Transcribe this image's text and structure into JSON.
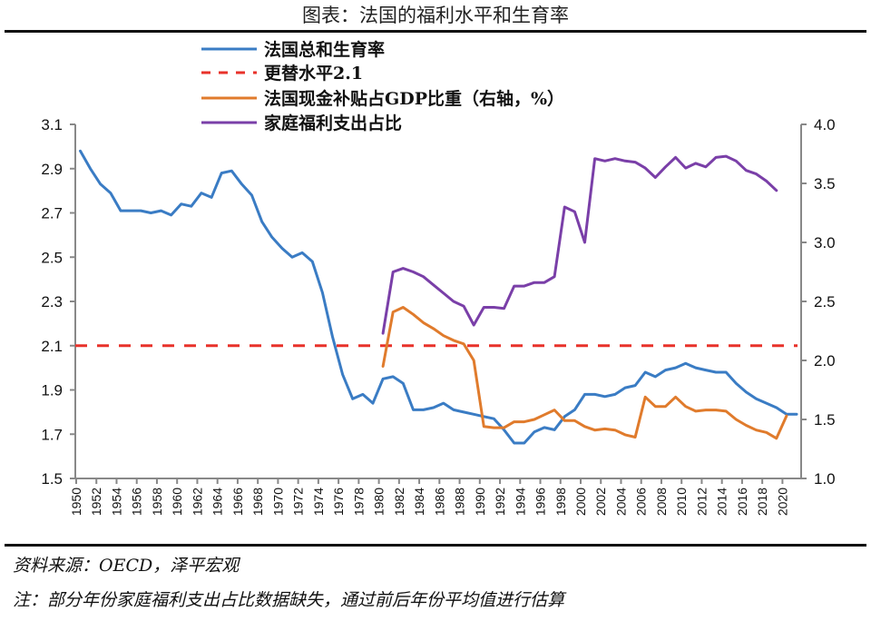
{
  "title": "图表：法国的福利水平和生育率",
  "footer": {
    "source": "资料来源：OECD，泽平宏观",
    "note": "注：部分年份家庭福利支出占比数据缺失，通过前后年份平均值进行估算"
  },
  "chart_data": {
    "type": "line",
    "title": "图表：法国的福利水平和生育率",
    "legend_position": "top",
    "grid": false,
    "x_ticks": [
      "1950",
      "1952",
      "1954",
      "1956",
      "1958",
      "1960",
      "1962",
      "1964",
      "1966",
      "1968",
      "1970",
      "1972",
      "1974",
      "1976",
      "1978",
      "1980",
      "1982",
      "1984",
      "1986",
      "1988",
      "1990",
      "1992",
      "1994",
      "1996",
      "1998",
      "2000",
      "2002",
      "2004",
      "2006",
      "2008",
      "2010",
      "2012",
      "2014",
      "2016",
      "2018",
      "2020"
    ],
    "y_left": {
      "range": [
        1.5,
        3.1
      ],
      "ticks": [
        "3.1",
        "2.9",
        "2.7",
        "2.5",
        "2.3",
        "2.1",
        "1.9",
        "1.7",
        "1.5"
      ]
    },
    "y_right": {
      "range": [
        1.0,
        4.0
      ],
      "ticks": [
        "4.0",
        "3.5",
        "3.0",
        "2.5",
        "2.0",
        "1.5",
        "1.0"
      ]
    },
    "series": [
      {
        "name": "法国总和生育率",
        "axis": "left",
        "color": "#3a7cc4",
        "style": "solid",
        "start_year": 1950,
        "values": [
          2.98,
          2.9,
          2.83,
          2.79,
          2.71,
          2.71,
          2.71,
          2.7,
          2.71,
          2.69,
          2.74,
          2.73,
          2.79,
          2.77,
          2.88,
          2.89,
          2.83,
          2.78,
          2.66,
          2.59,
          2.54,
          2.5,
          2.52,
          2.48,
          2.34,
          2.14,
          1.97,
          1.86,
          1.88,
          1.84,
          1.95,
          1.96,
          1.93,
          1.81,
          1.81,
          1.82,
          1.84,
          1.81,
          1.8,
          1.79,
          1.78,
          1.77,
          1.72,
          1.66,
          1.66,
          1.71,
          1.73,
          1.72,
          1.78,
          1.81,
          1.88,
          1.88,
          1.87,
          1.88,
          1.91,
          1.92,
          1.98,
          1.96,
          1.99,
          2.0,
          2.02,
          2.0,
          1.99,
          1.98,
          1.98,
          1.93,
          1.89,
          1.86,
          1.84,
          1.82,
          1.79,
          1.79
        ]
      },
      {
        "name": "更替水平2.1",
        "axis": "left",
        "color": "#e8322a",
        "style": "dashed",
        "start_year": 1950,
        "constant": 2.1,
        "end_year": 2021
      },
      {
        "name": "法国现金补贴占GDP比重（右轴，%）",
        "axis": "right",
        "color": "#e07b2c",
        "style": "solid",
        "start_year": 1980,
        "values": [
          1.95,
          2.41,
          2.45,
          2.39,
          2.32,
          2.27,
          2.21,
          2.17,
          2.14,
          2.0,
          1.44,
          1.43,
          1.43,
          1.48,
          1.48,
          1.5,
          1.54,
          1.58,
          1.49,
          1.49,
          1.44,
          1.41,
          1.42,
          1.41,
          1.37,
          1.35,
          1.69,
          1.61,
          1.61,
          1.69,
          1.61,
          1.57,
          1.58,
          1.58,
          1.57,
          1.5,
          1.45,
          1.41,
          1.39,
          1.34,
          1.53
        ]
      },
      {
        "name": "家庭福利支出占比",
        "axis": "right",
        "color": "#7a3fa8",
        "style": "solid",
        "start_year": 1980,
        "values": [
          2.23,
          2.75,
          2.78,
          2.75,
          2.71,
          2.64,
          2.57,
          2.5,
          2.46,
          2.3,
          2.45,
          2.45,
          2.44,
          2.63,
          2.63,
          2.66,
          2.66,
          2.71,
          3.3,
          3.26,
          3.0,
          3.71,
          3.69,
          3.71,
          3.69,
          3.68,
          3.63,
          3.55,
          3.64,
          3.72,
          3.63,
          3.67,
          3.64,
          3.72,
          3.73,
          3.69,
          3.61,
          3.58,
          3.52,
          3.44
        ]
      }
    ]
  }
}
